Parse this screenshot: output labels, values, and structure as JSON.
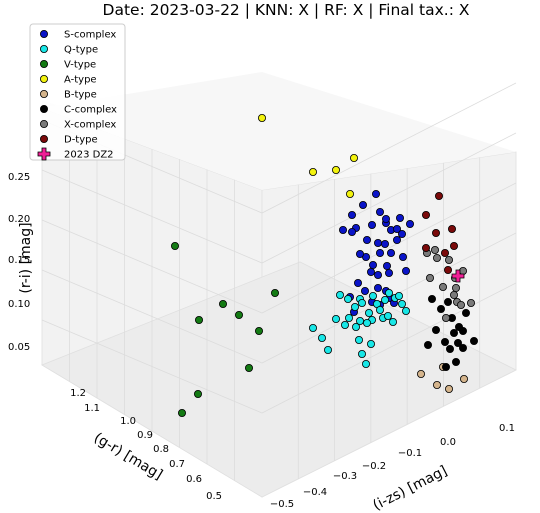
{
  "chart_data": {
    "type": "scatter",
    "title": "Date: 2023-03-22 | KNN: X | RF: X | Final tax.: X",
    "axes": {
      "x": {
        "label": "(i-zs) [mag]",
        "ticks": [
          "-0.5",
          "-0.4",
          "-0.3",
          "-0.2",
          "-0.1",
          "0.0",
          "0.1"
        ]
      },
      "y": {
        "label": "(g-r) [mag]",
        "ticks": [
          "0.5",
          "0.6",
          "0.7",
          "0.8",
          "0.9",
          "1.0",
          "1.1",
          "1.2"
        ]
      },
      "z": {
        "label": "(r-i) [mag]",
        "ticks": [
          "0.05",
          "0.10",
          "0.15",
          "0.20",
          "0.25"
        ]
      }
    },
    "grid": true,
    "legend_position": "top-left",
    "series": [
      {
        "name": "S-complex",
        "color": "#0a14c8",
        "marker": "circle",
        "point_count": 40
      },
      {
        "name": "Q-type",
        "color": "#18e6e6",
        "marker": "circle",
        "point_count": 32
      },
      {
        "name": "V-type",
        "color": "#137a13",
        "marker": "circle",
        "point_count": 9
      },
      {
        "name": "A-type",
        "color": "#f2f20e",
        "marker": "circle",
        "point_count": 5
      },
      {
        "name": "B-type",
        "color": "#d4b48c",
        "marker": "circle",
        "point_count": 5
      },
      {
        "name": "C-complex",
        "color": "#000000",
        "marker": "circle",
        "point_count": 17
      },
      {
        "name": "X-complex",
        "color": "#7a7a7a",
        "marker": "circle",
        "point_count": 14
      },
      {
        "name": "D-type",
        "color": "#7a0a0a",
        "marker": "circle",
        "point_count": 8
      },
      {
        "name": "2023 DZ2",
        "color": "#f01e96",
        "marker": "plus",
        "point_count": 1
      }
    ]
  }
}
